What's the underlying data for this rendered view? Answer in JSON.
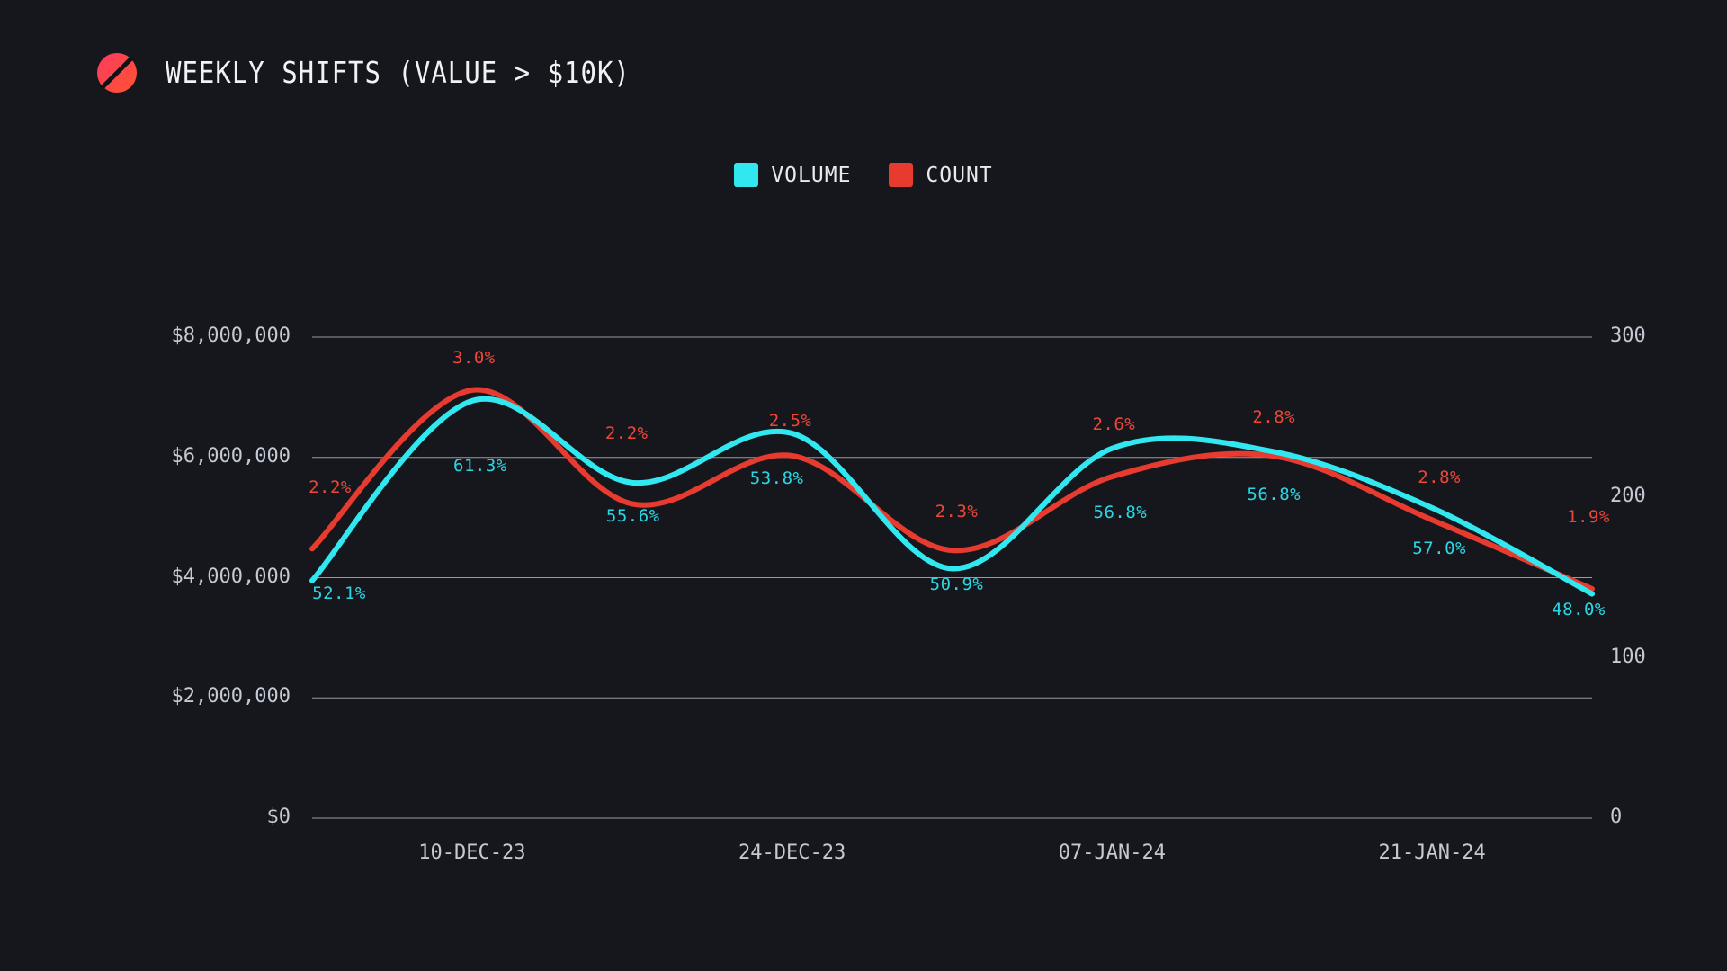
{
  "header": {
    "title": "WEEKLY SHIFTS (VALUE > $10K)",
    "logo_icon": "slashed-circle-icon"
  },
  "legend": [
    {
      "label": "VOLUME",
      "color": "#31e8f0"
    },
    {
      "label": "COUNT",
      "color": "#e73b30"
    }
  ],
  "colors": {
    "background": "#16171c",
    "title_text": "#f1f2f5",
    "axis_text": "#c5c9d3",
    "grid_line": "#c3c8d2",
    "legend_text": "#e8eaee",
    "logo_gradient_start": "#fc3a60",
    "logo_gradient_end": "#ff5430"
  },
  "axes": {
    "left_ticks": [
      "$8,000,000",
      "$6,000,000",
      "$4,000,000",
      "$2,000,000",
      "$0"
    ],
    "right_ticks": [
      "300",
      "200",
      "100",
      "0"
    ],
    "x_ticks": [
      "10-DEC-23",
      "24-DEC-23",
      "07-JAN-24",
      "21-JAN-24"
    ]
  },
  "chart_data": {
    "type": "line",
    "title": "WEEKLY SHIFTS (VALUE > $10K)",
    "grid": "horizontal",
    "legend_position": "top-center",
    "left_axis": {
      "min": 0,
      "max": 8000000,
      "tick_step": 2000000,
      "format": "$#,##0"
    },
    "right_axis": {
      "min": 0,
      "max": 300,
      "tick_step": 100
    },
    "x_tick_labels": [
      "10-DEC-23",
      "24-DEC-23",
      "07-JAN-24",
      "21-JAN-24"
    ],
    "x_tick_indices": [
      1,
      3,
      5,
      7
    ],
    "n_points": 9,
    "series": [
      {
        "name": "VOLUME",
        "axis": "left",
        "color": "#31e8f0",
        "label_color": "#2bd7e4",
        "values": [
          3950000,
          6940000,
          5580000,
          6400000,
          4150000,
          6150000,
          6100000,
          5160000,
          3730000
        ],
        "point_labels": [
          "52.1%",
          "61.3%",
          "55.6%",
          "53.8%",
          "50.9%",
          "56.8%",
          "56.8%",
          "57.0%",
          "48.0%"
        ]
      },
      {
        "name": "COUNT",
        "axis": "right",
        "color": "#e73b30",
        "label_color": "#ee4639",
        "values": [
          168,
          267,
          196,
          226,
          167,
          213,
          226,
          186,
          143
        ],
        "point_labels": [
          "2.2%",
          "3.0%",
          "2.2%",
          "2.5%",
          "2.3%",
          "2.6%",
          "2.8%",
          "2.8%",
          "1.9%"
        ]
      }
    ]
  }
}
